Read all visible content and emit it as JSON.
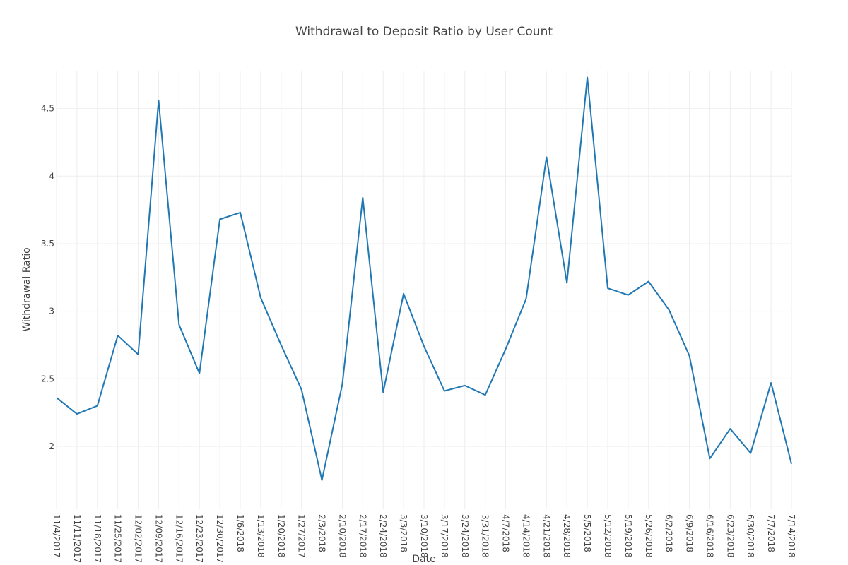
{
  "chart_data": {
    "type": "line",
    "title": "Withdrawal to Deposit Ratio by User Count",
    "xlabel": "Date",
    "ylabel": "Withdrawal Ratio",
    "ylim": [
      1.54,
      4.78
    ],
    "yticks": [
      {
        "value": 2,
        "label": "2"
      },
      {
        "value": 2.5,
        "label": "2.5"
      },
      {
        "value": 3,
        "label": "3"
      },
      {
        "value": 3.5,
        "label": "3.5"
      },
      {
        "value": 4,
        "label": "4"
      },
      {
        "value": 4.5,
        "label": "4.5"
      }
    ],
    "grid": true,
    "legend": "none",
    "line_color": "#1f77b4",
    "x": [
      "11/4/2017",
      "11/11/2017",
      "11/18/2017",
      "11/25/2017",
      "12/02/2017",
      "12/09/2017",
      "12/16/2017",
      "12/23/2017",
      "12/30/2017",
      "1/6/2018",
      "1/13/2018",
      "1/20/2018",
      "1/27/2017",
      "2/3/2018",
      "2/10/2018",
      "2/17/2018",
      "2/24/2018",
      "3/3/2018",
      "3/10/2018",
      "3/17/2018",
      "3/24/2018",
      "3/31/2018",
      "4/7/2018",
      "4/14/2018",
      "4/21/2018",
      "4/28/2018",
      "5/5/2018",
      "5/12/2018",
      "5/19/2018",
      "5/26/2018",
      "6/2/2018",
      "6/9/2018",
      "6/16/2018",
      "6/23/2018",
      "6/30/2018",
      "7/7/2018",
      "7/14/2018"
    ],
    "series": [
      {
        "values": [
          2.36,
          2.24,
          2.3,
          2.82,
          2.68,
          4.56,
          2.9,
          2.54,
          3.68,
          3.73,
          3.1,
          2.75,
          2.42,
          1.75,
          2.46,
          3.84,
          2.4,
          3.13,
          2.74,
          2.41,
          2.45,
          2.38,
          2.72,
          3.09,
          4.14,
          3.21,
          4.73,
          3.17,
          3.12,
          3.22,
          3.01,
          2.67,
          1.91,
          2.13,
          1.95,
          2.47,
          1.87
        ]
      }
    ]
  }
}
